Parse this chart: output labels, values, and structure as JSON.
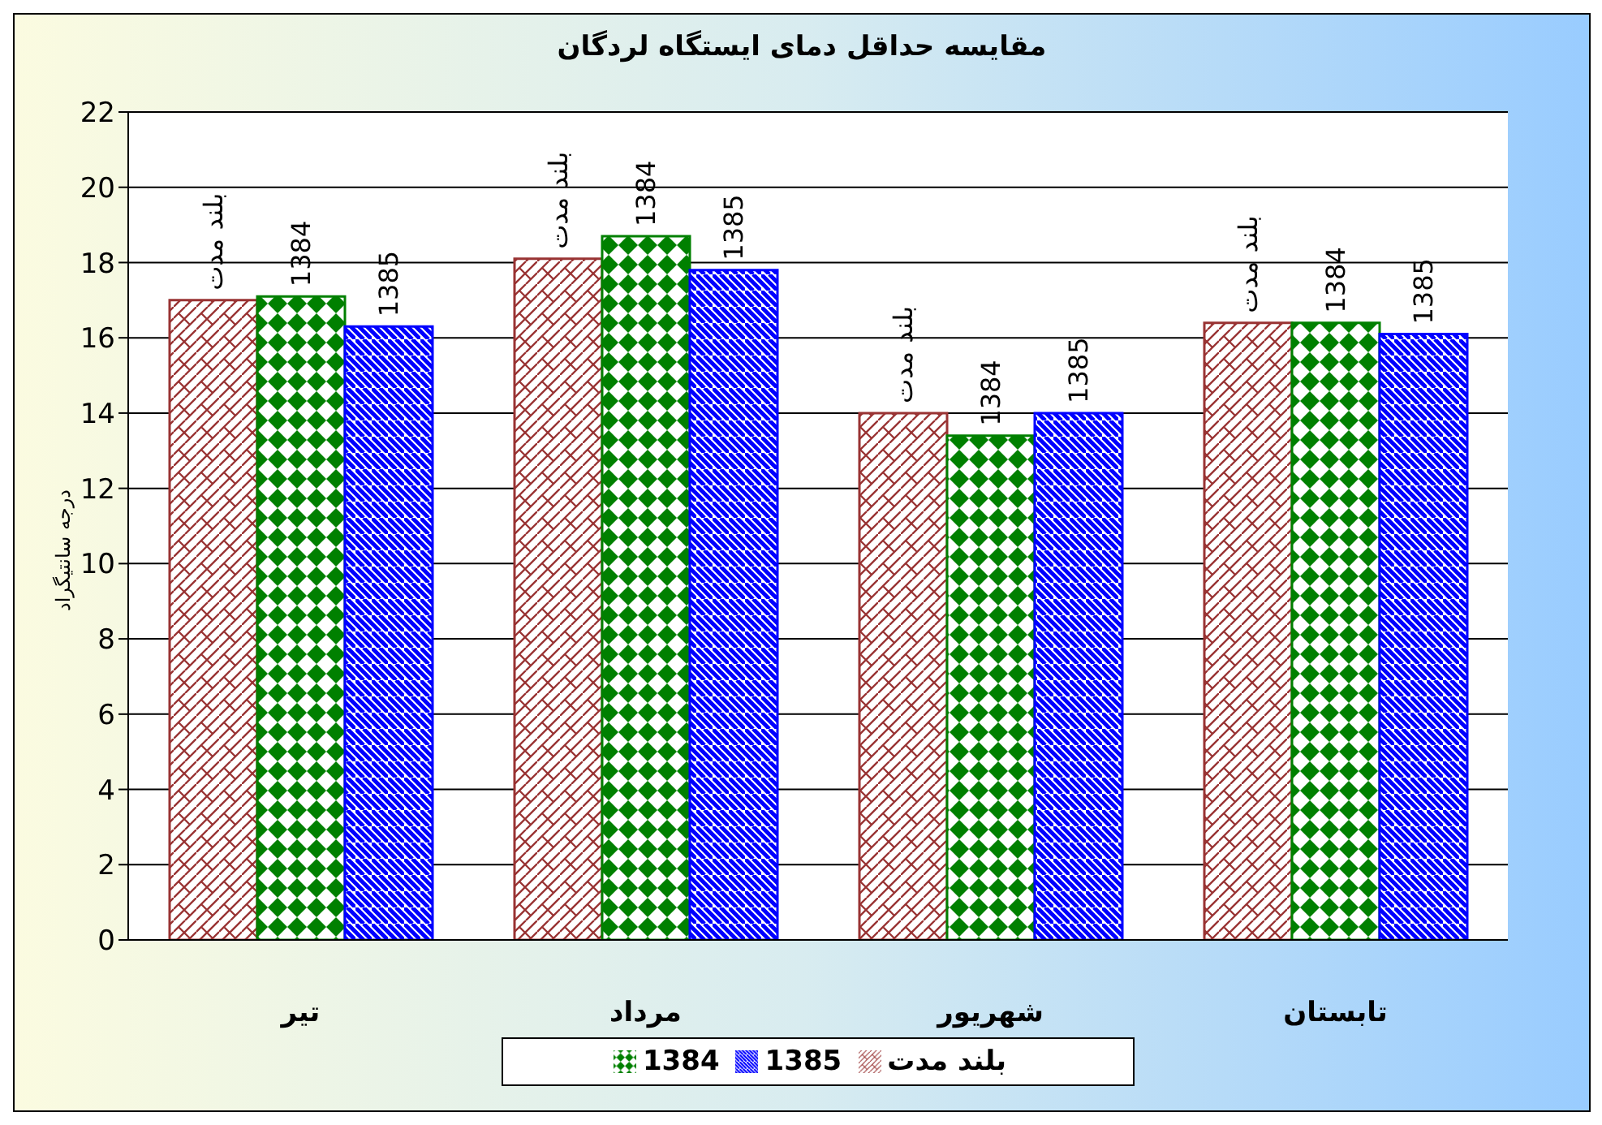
{
  "chart_data": {
    "type": "bar",
    "title": "مقایسه حداقل دمای ایستگاه لردگان",
    "ylabel": "درجه سانتیگراد",
    "categories": [
      "تیر",
      "مرداد",
      "شهریور",
      "تابستان"
    ],
    "series": [
      {
        "name": "بلند مدت",
        "color": "#993333",
        "values": [
          17.0,
          18.1,
          14.0,
          16.4
        ]
      },
      {
        "name": "1384",
        "color": "#008000",
        "values": [
          17.1,
          18.7,
          13.4,
          16.4
        ]
      },
      {
        "name": "1385",
        "color": "#0000ff",
        "values": [
          16.3,
          17.8,
          14.0,
          16.1
        ]
      }
    ],
    "ylim": [
      0,
      22
    ],
    "yticks": [
      0,
      2,
      4,
      6,
      8,
      10,
      12,
      14,
      16,
      18,
      20,
      22
    ],
    "grid": "y",
    "legend": "bottom"
  }
}
